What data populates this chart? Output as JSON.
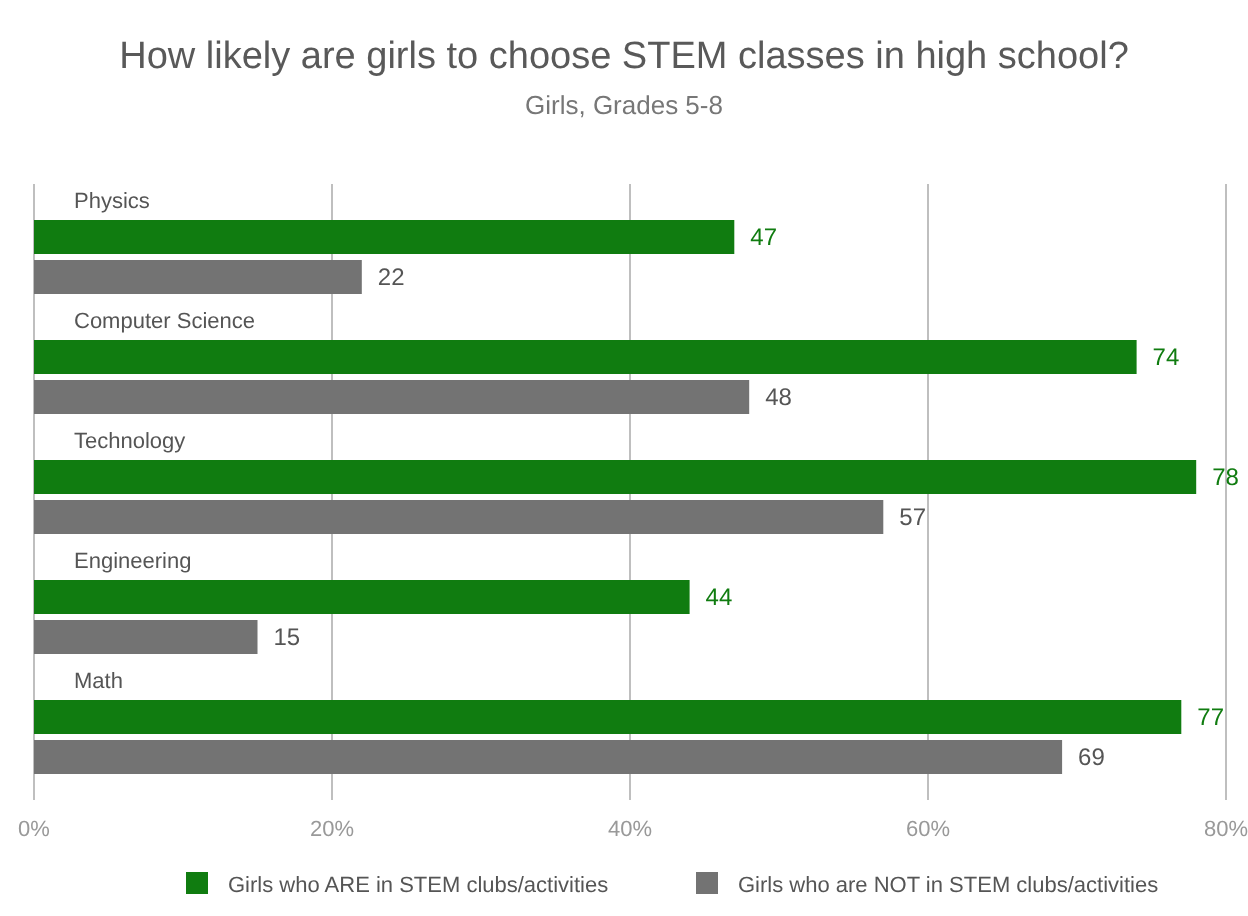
{
  "chart_data": {
    "type": "bar",
    "orientation": "horizontal",
    "title": "How likely are girls to choose STEM classes in high school?",
    "subtitle": "Girls, Grades 5-8",
    "categories": [
      "Physics",
      "Computer Science",
      "Technology",
      "Engineering",
      "Math"
    ],
    "series": [
      {
        "name": "Girls who ARE in STEM clubs/activities",
        "color": "#107c10",
        "values": [
          47,
          74,
          78,
          44,
          77
        ]
      },
      {
        "name": "Girls who are NOT in STEM clubs/activities",
        "color": "#737373",
        "values": [
          22,
          48,
          57,
          15,
          69
        ]
      }
    ],
    "xlim": [
      0,
      80
    ],
    "xticks": [
      {
        "value": 0,
        "label": "0%"
      },
      {
        "value": 20,
        "label": "20%"
      },
      {
        "value": 40,
        "label": "40%"
      },
      {
        "value": 60,
        "label": "60%"
      },
      {
        "value": 80,
        "label": "80%"
      }
    ],
    "grid": "x",
    "legend": "bottom",
    "data_labels": true
  }
}
